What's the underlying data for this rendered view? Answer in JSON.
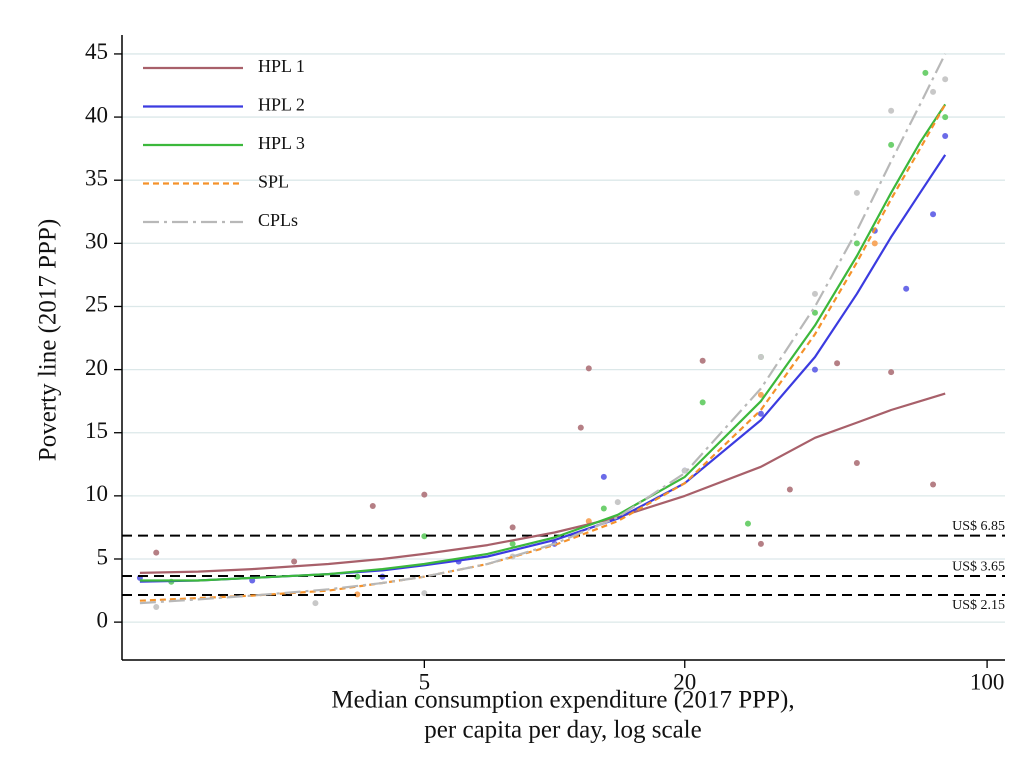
{
  "chart_data": {
    "type": "line",
    "xlabel": [
      "Median consumption expenditure (2017 PPP),",
      "per capita per day, log scale"
    ],
    "ylabel": "Poverty line (2017 PPP)",
    "xscale": "log",
    "xlim": [
      1,
      110
    ],
    "ylim": [
      -3,
      46.5
    ],
    "xticks": [
      5,
      20,
      100
    ],
    "yticks": [
      0,
      5,
      10,
      15,
      20,
      25,
      30,
      35,
      40,
      45
    ],
    "grid": true,
    "legend": "top-left",
    "x": [
      1.1,
      1.5,
      2,
      3,
      4,
      5,
      7,
      10,
      14,
      20,
      30,
      40,
      50,
      60,
      70,
      80
    ],
    "series": [
      {
        "name": "HPL 1",
        "color": "#a8606a",
        "dash": "solid",
        "values": [
          3.9,
          4.0,
          4.2,
          4.6,
          5.0,
          5.4,
          6.1,
          7.1,
          8.3,
          10,
          12.3,
          14.6,
          15.8,
          16.8,
          17.5,
          18.1
        ]
      },
      {
        "name": "HPL 2",
        "color": "#3b3be0",
        "dash": "solid",
        "values": [
          3.2,
          3.3,
          3.5,
          3.8,
          4.1,
          4.5,
          5.2,
          6.5,
          8.2,
          11,
          16,
          21,
          26,
          30.5,
          34,
          37
        ]
      },
      {
        "name": "HPL 3",
        "color": "#3cb83c",
        "dash": "solid",
        "values": [
          3.3,
          3.3,
          3.5,
          3.8,
          4.2,
          4.6,
          5.4,
          6.7,
          8.5,
          11.5,
          17.5,
          23.5,
          29,
          34,
          38,
          41
        ]
      },
      {
        "name": "SPL",
        "color": "#f5922a",
        "dash": "dash",
        "values": [
          1.7,
          1.9,
          2.1,
          2.5,
          3.1,
          3.6,
          4.6,
          6.1,
          8.0,
          11,
          16.8,
          22.8,
          28.5,
          33.5,
          37.5,
          41
        ]
      },
      {
        "name": "CPLs",
        "color": "#b8b8b8",
        "dash": "dashdot",
        "values": [
          1.5,
          1.8,
          2.1,
          2.6,
          3.1,
          3.6,
          4.6,
          6.2,
          8.3,
          11.8,
          18.5,
          25,
          31,
          36.5,
          41,
          45
        ]
      }
    ],
    "points": [
      {
        "color": "#b57f85",
        "x": [
          1.2,
          2.5,
          3.8,
          5,
          8,
          12,
          11.5,
          22,
          35,
          45,
          60,
          75,
          30,
          50
        ],
        "y": [
          5.5,
          4.8,
          9.2,
          10.1,
          7.5,
          20.1,
          15.4,
          20.7,
          10.5,
          20.5,
          19.8,
          10.9,
          6.2,
          12.6
        ]
      },
      {
        "color": "#6b6be8",
        "x": [
          1.1,
          2,
          4,
          6,
          10,
          13,
          20,
          30,
          40,
          55,
          65,
          75,
          80
        ],
        "y": [
          3.5,
          3.3,
          3.6,
          4.8,
          6.2,
          11.5,
          12,
          16.5,
          20,
          31,
          26.4,
          32.3,
          38.5
        ]
      },
      {
        "color": "#6fd06f",
        "x": [
          1.3,
          3.5,
          5,
          8,
          13,
          22,
          30,
          40,
          50,
          60,
          72,
          80,
          28
        ],
        "y": [
          3.2,
          3.6,
          6.8,
          6.2,
          9,
          17.4,
          21,
          24.5,
          30,
          37.8,
          43.5,
          40,
          7.8
        ]
      },
      {
        "color": "#f7a860",
        "x": [
          3.5,
          12,
          30,
          55
        ],
        "y": [
          2.2,
          8,
          18,
          30
        ]
      },
      {
        "color": "#c8c8c8",
        "x": [
          1.2,
          2.8,
          5,
          8,
          14,
          20,
          30,
          40,
          50,
          60,
          75,
          80
        ],
        "y": [
          1.2,
          1.5,
          2.3,
          5.2,
          9.5,
          12,
          21,
          26,
          34,
          40.5,
          42,
          43
        ]
      }
    ],
    "reference_lines": [
      {
        "value": 6.85,
        "label": "US$ 6.85"
      },
      {
        "value": 3.65,
        "label": "US$ 3.65"
      },
      {
        "value": 2.15,
        "label": "US$ 2.15"
      }
    ]
  }
}
